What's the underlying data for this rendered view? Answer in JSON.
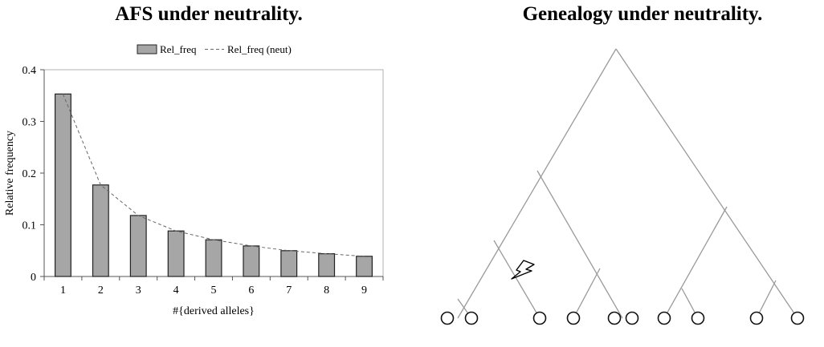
{
  "left_panel": {
    "title": "AFS under neutrality."
  },
  "right_panel": {
    "title": "Genealogy under neutrality."
  },
  "colors": {
    "bar_fill": "#a6a6a6",
    "bar_stroke": "#222222",
    "neutral_line": "#666666",
    "tree_line": "#9a9a9a",
    "mutation": "#000000"
  },
  "chart_data": [
    {
      "type": "bar",
      "title": "AFS under neutrality.",
      "categories": [
        "1",
        "2",
        "3",
        "4",
        "5",
        "6",
        "7",
        "8",
        "9"
      ],
      "series": [
        {
          "name": "Rel_freq",
          "type": "bar",
          "values": [
            0.353,
            0.177,
            0.118,
            0.088,
            0.071,
            0.059,
            0.05,
            0.044,
            0.039
          ]
        },
        {
          "name": "Rel_freq (neut)",
          "type": "line",
          "style": "dashed",
          "values": [
            0.353,
            0.177,
            0.118,
            0.088,
            0.071,
            0.059,
            0.05,
            0.044,
            0.039
          ]
        }
      ],
      "xlabel": "#{derived alleles}",
      "ylabel": "Relative frequency",
      "ylim": [
        0,
        0.4
      ],
      "yticks": [
        "0",
        "0.1",
        "0.2",
        "0.3",
        "0.4"
      ],
      "legend_position": "top-center",
      "grid": false
    }
  ],
  "genealogy": {
    "leaf_count": 10,
    "mutation_icon": "lightning-bolt-icon",
    "leaf_icon": "circle-icon",
    "topology": [
      "root",
      [
        "left",
        [
          "sub",
          [
            "a",
            0,
            1
          ],
          2
        ],
        [
          "b",
          3,
          4
        ]
      ],
      [
        "right",
        5,
        [
          "c",
          6,
          7
        ],
        [
          "d",
          8,
          9
        ]
      ]
    ]
  }
}
